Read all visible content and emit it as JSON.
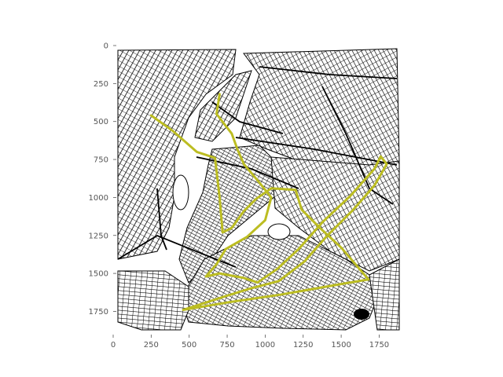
{
  "chart_data": {
    "type": "map",
    "title": "",
    "xlabel": "",
    "ylabel": "",
    "xlim": [
      0,
      1900
    ],
    "ylim": [
      1900,
      0
    ],
    "grid": false,
    "x_ticks": [
      0,
      250,
      500,
      750,
      1000,
      1250,
      1500,
      1750
    ],
    "y_ticks": [
      0,
      250,
      500,
      750,
      1000,
      1250,
      1500,
      1750
    ],
    "x_tick_labels": [
      "0",
      "250",
      "500",
      "750",
      "1000",
      "1250",
      "1500",
      "1750"
    ],
    "y_tick_labels": [
      "0",
      "250",
      "500",
      "750",
      "1000",
      "1250",
      "1500",
      "1750"
    ],
    "background_layer": "street network (black lines on white)",
    "route_color": "#bcbd22",
    "route": [
      [
        250,
        460
      ],
      [
        390,
        560
      ],
      [
        550,
        700
      ],
      [
        670,
        740
      ],
      [
        700,
        1000
      ],
      [
        720,
        1230
      ],
      [
        780,
        1200
      ],
      [
        860,
        1090
      ],
      [
        940,
        1010
      ],
      [
        1040,
        940
      ],
      [
        1200,
        950
      ],
      [
        1240,
        1080
      ],
      [
        1360,
        1200
      ],
      [
        1500,
        1330
      ],
      [
        1620,
        1470
      ],
      [
        1680,
        1540
      ],
      [
        1500,
        1570
      ],
      [
        1100,
        1640
      ],
      [
        760,
        1690
      ],
      [
        460,
        1740
      ],
      [
        740,
        1650
      ],
      [
        900,
        1600
      ],
      [
        1090,
        1550
      ],
      [
        1260,
        1420
      ],
      [
        1400,
        1260
      ],
      [
        1580,
        1080
      ],
      [
        1720,
        920
      ],
      [
        1800,
        780
      ],
      [
        1760,
        730
      ],
      [
        1720,
        810
      ],
      [
        1560,
        990
      ],
      [
        1380,
        1160
      ],
      [
        1220,
        1340
      ],
      [
        1080,
        1470
      ],
      [
        950,
        1560
      ],
      [
        860,
        1530
      ],
      [
        700,
        1500
      ],
      [
        610,
        1520
      ],
      [
        680,
        1440
      ],
      [
        740,
        1340
      ],
      [
        880,
        1260
      ],
      [
        1000,
        1150
      ],
      [
        1040,
        1000
      ],
      [
        960,
        900
      ],
      [
        860,
        780
      ],
      [
        820,
        690
      ],
      [
        780,
        580
      ],
      [
        680,
        450
      ],
      [
        700,
        320
      ]
    ]
  },
  "streets": {
    "park_label": "",
    "river_label": ""
  }
}
